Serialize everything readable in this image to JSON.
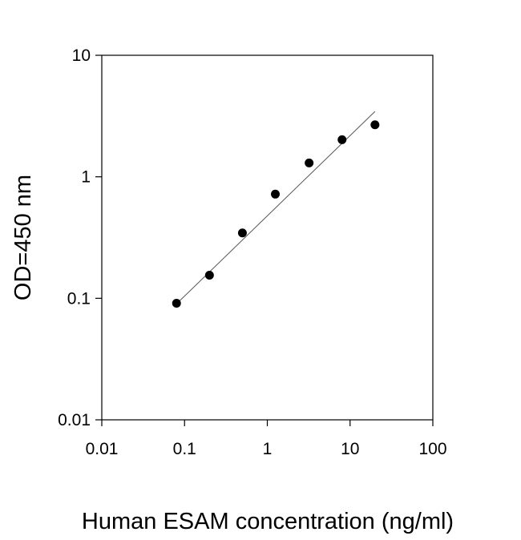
{
  "chart_data": {
    "type": "scatter",
    "title": "",
    "xlabel": "Human ESAM concentration (ng/ml)",
    "ylabel": "OD=450 nm",
    "xscale": "log",
    "yscale": "log",
    "xlim": [
      0.01,
      100
    ],
    "ylim": [
      0.01,
      10
    ],
    "xticks": [
      {
        "value": 0.01,
        "label": "0.01"
      },
      {
        "value": 0.1,
        "label": "0.1"
      },
      {
        "value": 1,
        "label": "1"
      },
      {
        "value": 10,
        "label": "10"
      },
      {
        "value": 100,
        "label": "100"
      }
    ],
    "yticks": [
      {
        "value": 0.01,
        "label": "0.01"
      },
      {
        "value": 0.1,
        "label": "0.1"
      },
      {
        "value": 1,
        "label": "1"
      },
      {
        "value": 10,
        "label": "10"
      }
    ],
    "grid": false,
    "legend": "none",
    "series": [
      {
        "x": [
          0.08,
          0.2,
          0.5,
          1.25,
          3.2,
          8,
          20
        ],
        "y": [
          0.091,
          0.155,
          0.345,
          0.72,
          1.3,
          2.02,
          2.68
        ]
      }
    ],
    "fit_line": {
      "x": [
        0.08,
        20
      ],
      "y": [
        0.09,
        3.45
      ]
    },
    "colors": {
      "marker": "#000000",
      "fit_line": "#555555",
      "axis": "#000000"
    }
  }
}
